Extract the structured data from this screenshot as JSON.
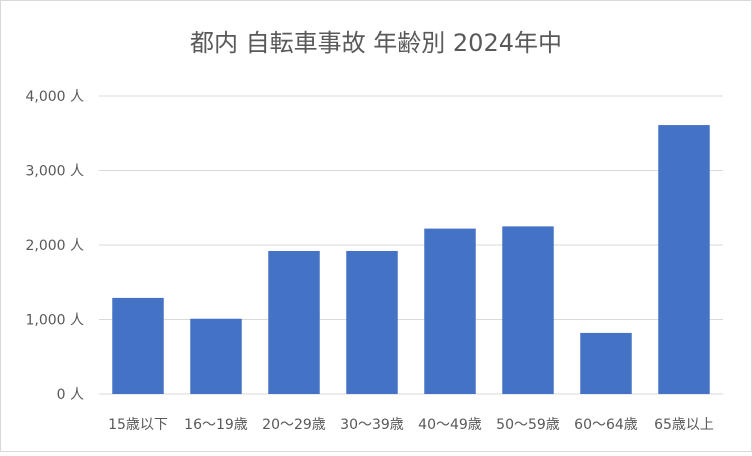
{
  "chart_data": {
    "type": "bar",
    "title": "都内 自転車事故 年齢別 2024年中",
    "categories": [
      "15歳以下",
      "16～19歳",
      "20～29歳",
      "30～39歳",
      "40～49歳",
      "50～59歳",
      "60～64歳",
      "65歳以上"
    ],
    "values": [
      1290,
      1010,
      1920,
      1920,
      2220,
      2250,
      820,
      3610
    ],
    "ylim": [
      0,
      4000
    ],
    "yticks": [
      0,
      1000,
      2000,
      3000,
      4000
    ],
    "ytick_labels": [
      "0 人",
      "1,000 人",
      "2,000 人",
      "3,000 人",
      "4,000 人"
    ],
    "grid": true,
    "legend": "none",
    "colors": {
      "bar": "#4472c4",
      "grid": "#d9d9d9",
      "text": "#595959"
    }
  }
}
